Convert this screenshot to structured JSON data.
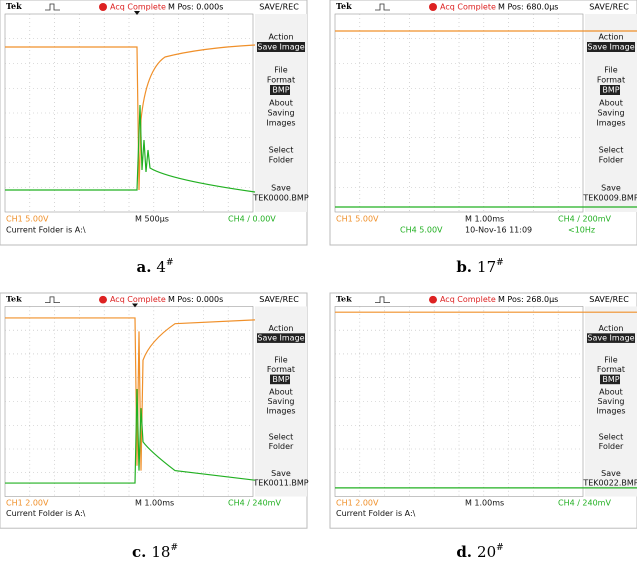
{
  "panels": [
    {
      "caption": {
        "letter": "a.",
        "number": "4",
        "mark": "#"
      },
      "header": {
        "brand": "Tek",
        "status": "Acq Complete",
        "position": "M Pos: 0.000s",
        "menu_title": "SAVE/REC"
      },
      "menu": [
        "Action",
        "Save Image",
        "File",
        "Format",
        "BMP",
        "About",
        "Saving",
        "Images",
        "Select",
        "Folder",
        "Save",
        "TEK0000.BMP"
      ],
      "footer": {
        "ch1": "CH1  5.00V",
        "timebase": "M 500µs",
        "trigger": "CH4 / 0.00V",
        "folder": "Current Folder is A:\\"
      }
    },
    {
      "caption": {
        "letter": "b.",
        "number": "17",
        "mark": "#"
      },
      "header": {
        "brand": "Tek",
        "status": "Acq Complete",
        "position": "M Pos: 680.0µs",
        "menu_title": "SAVE/REC"
      },
      "menu": [
        "Action",
        "Save Image",
        "File",
        "Format",
        "BMP",
        "About",
        "Saving",
        "Images",
        "Select",
        "Folder",
        "Save",
        "TEK0009.BMP"
      ],
      "footer": {
        "ch1": "CH1  5.00V",
        "ch4": "CH4  5.00V",
        "timebase": "M 1.00ms",
        "date": "10-Nov-16 11:09",
        "trigger": "CH4 / 200mV",
        "frequency": "<10Hz"
      }
    },
    {
      "caption": {
        "letter": "c.",
        "number": "18",
        "mark": "#"
      },
      "header": {
        "brand": "Tek",
        "status": "Acq Complete",
        "position": "M Pos: 0.000s",
        "menu_title": "SAVE/REC"
      },
      "menu": [
        "Action",
        "Save Image",
        "File",
        "Format",
        "BMP",
        "About",
        "Saving",
        "Images",
        "Select",
        "Folder",
        "Save",
        "TEK0011.BMP"
      ],
      "footer": {
        "ch1": "CH1  2.00V",
        "timebase": "M 1.00ms",
        "trigger": "CH4 / 240mV",
        "folder": "Current Folder is A:\\"
      }
    },
    {
      "caption": {
        "letter": "d.",
        "number": "20",
        "mark": "#"
      },
      "header": {
        "brand": "Tek",
        "status": "Acq Complete",
        "position": "M Pos: 268.0µs",
        "menu_title": "SAVE/REC"
      },
      "menu": [
        "Action",
        "Save Image",
        "File",
        "Format",
        "BMP",
        "About",
        "Saving",
        "Images",
        "Select",
        "Folder",
        "Save",
        "TEK0022.BMP"
      ],
      "footer": {
        "ch1": "CH1  2.00V",
        "timebase": "M 1.00ms",
        "trigger": "CH4 / 240mV",
        "folder": "Current Folder is A:\\"
      }
    }
  ]
}
